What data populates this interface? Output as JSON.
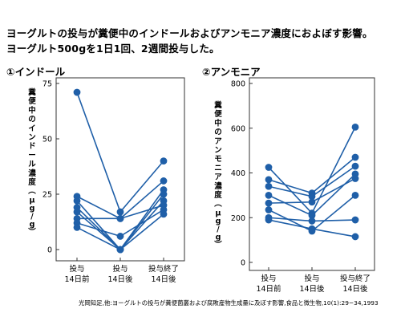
{
  "title_lines": [
    "ヨーグルトの投与が糞便中のインドールおよびアンモニア濃度におよぼす影響。",
    "ヨーグルト500gを1日1回、2週間投与した。"
  ],
  "colors": {
    "series": "#1f5fa8",
    "axis": "#333333"
  },
  "chart_data": [
    {
      "type": "line",
      "title": "①インドール",
      "ylabel": "糞便中のインドール濃度（μg/g）",
      "x_categories": [
        [
          "投与",
          "14日前"
        ],
        [
          "投与",
          "14日後"
        ],
        [
          "投与終了",
          "14日後"
        ]
      ],
      "ylim": [
        0,
        75
      ],
      "yticks": [
        0,
        25,
        50,
        75
      ],
      "series": [
        {
          "values": [
            71,
            17,
            40
          ]
        },
        {
          "values": [
            24,
            14,
            31
          ]
        },
        {
          "values": [
            22,
            0,
            27
          ]
        },
        {
          "values": [
            19,
            0,
            25
          ]
        },
        {
          "values": [
            17,
            0,
            22
          ]
        },
        {
          "values": [
            14,
            14,
            20
          ]
        },
        {
          "values": [
            12,
            6,
            18
          ]
        },
        {
          "values": [
            10,
            0,
            16
          ]
        }
      ]
    },
    {
      "type": "line",
      "title": "②アンモニア",
      "ylabel": "糞便中のアンモニア濃度（μg/g）",
      "x_categories": [
        [
          "投与",
          "14日前"
        ],
        [
          "投与",
          "14日後"
        ],
        [
          "投与終了",
          "14日後"
        ]
      ],
      "ylim": [
        0,
        800
      ],
      "yticks": [
        0,
        200,
        400,
        600,
        800
      ],
      "series": [
        {
          "values": [
            425,
            220,
            605
          ]
        },
        {
          "values": [
            370,
            310,
            470
          ]
        },
        {
          "values": [
            340,
            295,
            430
          ]
        },
        {
          "values": [
            300,
            210,
            395
          ]
        },
        {
          "values": [
            265,
            270,
            375
          ]
        },
        {
          "values": [
            235,
            140,
            300
          ]
        },
        {
          "values": [
            200,
            185,
            190
          ]
        },
        {
          "values": [
            190,
            150,
            115
          ]
        }
      ]
    }
  ],
  "citation": "光岡知足,他:ヨーグルトの投与が糞便菌叢および腐敗産物生成量に及ぼす影響,食品と微生物,10(1):29−34,1993"
}
